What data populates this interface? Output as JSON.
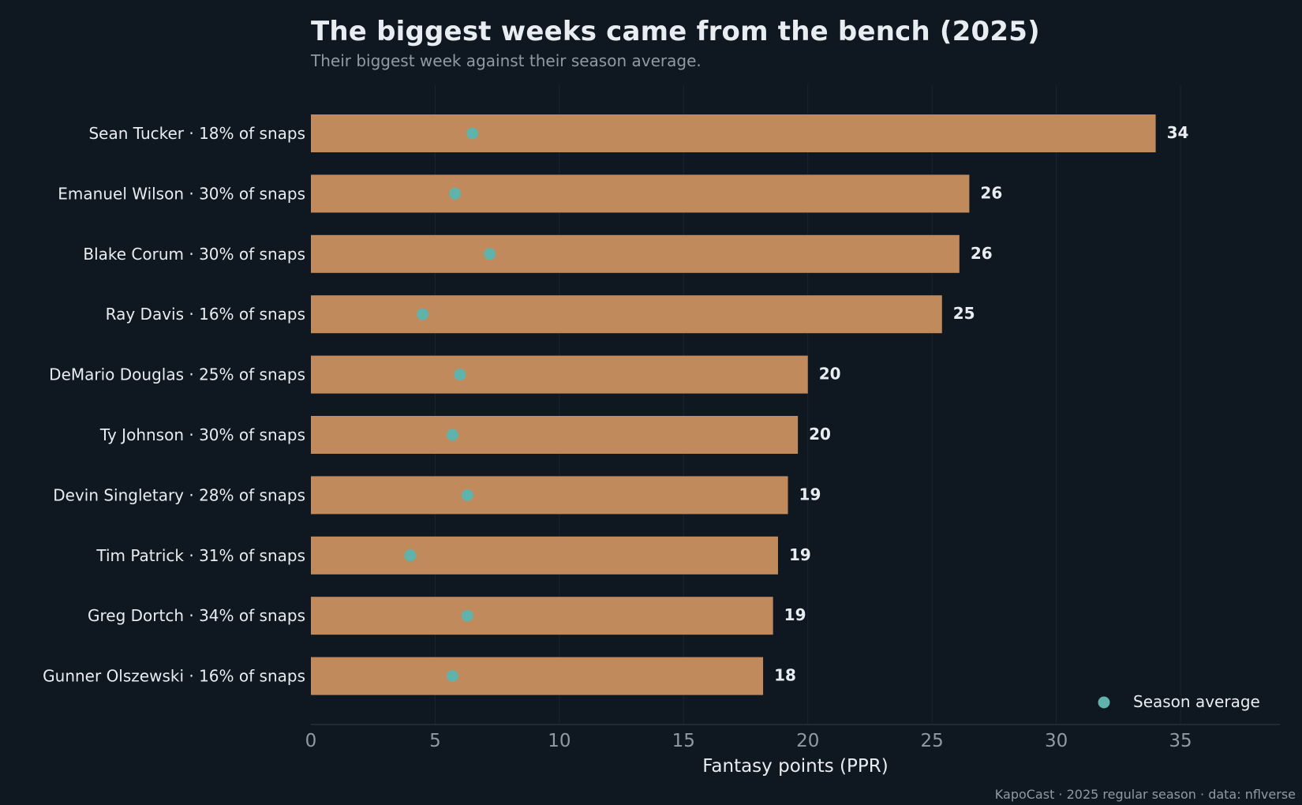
{
  "title": "The biggest weeks came from the bench (2025)",
  "subtitle": "Their biggest week against their season average.",
  "footer": "KapoCast · 2025 regular season · data: nflverse",
  "colors": {
    "background": "#0f1720",
    "bar": "#c08a5c",
    "dot": "#5fb3ab",
    "text": "#e8edf2",
    "muted": "#8f9aa5",
    "grid": "#1b2530"
  },
  "chart_data": {
    "type": "bar",
    "orientation": "horizontal",
    "categories": [
      "Sean Tucker  ·  18% of snaps",
      "Emanuel Wilson  ·  30% of snaps",
      "Blake Corum  ·  30% of snaps",
      "Ray Davis  ·  16% of snaps",
      "DeMario Douglas  ·  25% of snaps",
      "Ty Johnson  ·  30% of snaps",
      "Devin Singletary  ·  28% of snaps",
      "Tim Patrick  ·  31% of snaps",
      "Greg Dortch  ·  34% of snaps",
      "Gunner Olszewski  ·  16% of snaps"
    ],
    "series": [
      {
        "name": "",
        "values": [
          34.0,
          26.5,
          26.1,
          25.4,
          20.0,
          19.6,
          19.2,
          18.8,
          18.6,
          18.2
        ],
        "labels": [
          "34",
          "26",
          "26",
          "25",
          "20",
          "20",
          "19",
          "19",
          "19",
          "18"
        ]
      },
      {
        "name": "Season average",
        "values": [
          6.5,
          5.8,
          7.2,
          4.5,
          6.0,
          5.7,
          6.3,
          4.0,
          6.3,
          5.7
        ]
      }
    ],
    "xlabel": "Fantasy points (PPR)",
    "ylabel": "",
    "xlim": [
      0,
      39
    ],
    "xticks": [
      0,
      5,
      10,
      15,
      20,
      25,
      30,
      35
    ],
    "grid": "vertical",
    "legend": "bottom-right"
  }
}
